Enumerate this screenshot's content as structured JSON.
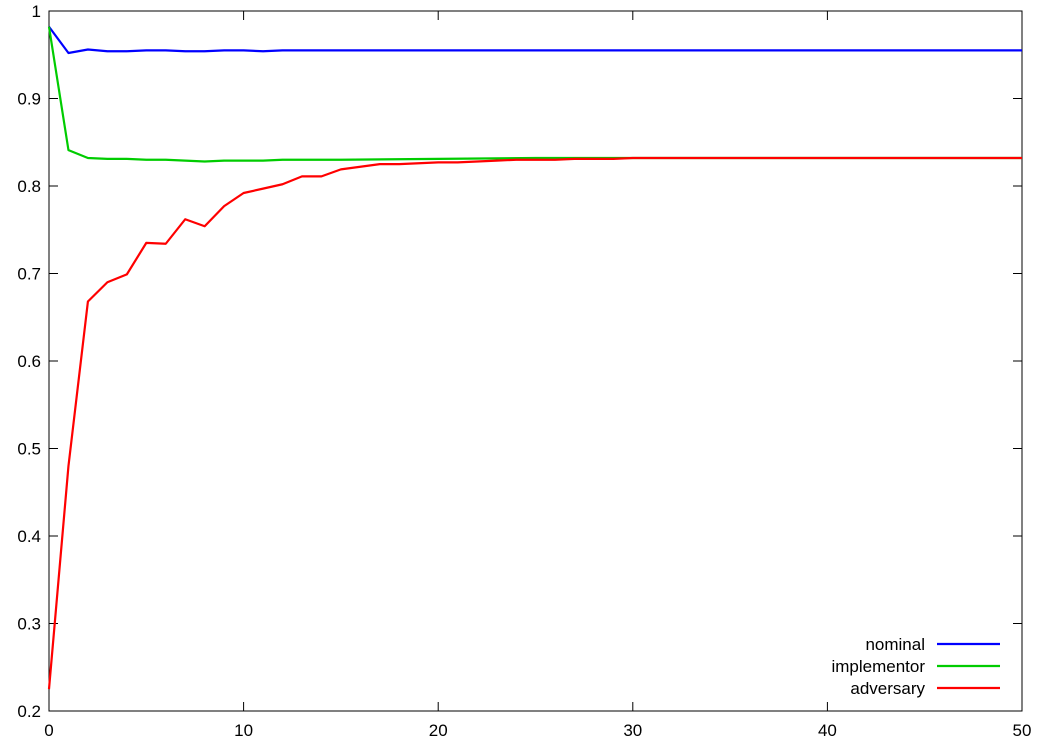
{
  "chart_data": {
    "type": "line",
    "xlim": [
      0,
      50
    ],
    "ylim": [
      0.2,
      1
    ],
    "xticks": [
      0,
      10,
      20,
      30,
      40,
      50
    ],
    "yticks": [
      0.2,
      0.3,
      0.4,
      0.5,
      0.6,
      0.7,
      0.8,
      0.9,
      1
    ],
    "xtick_labels": [
      "0",
      "10",
      "20",
      "30",
      "40",
      "50"
    ],
    "ytick_labels": [
      "0.2",
      "0.3",
      "0.4",
      "0.5",
      "0.6",
      "0.7",
      "0.8",
      "0.9",
      "1"
    ],
    "grid": false,
    "legend_position": "bottom-right",
    "series": [
      {
        "name": "nominal",
        "color": "#0000ff",
        "x": [
          0,
          1,
          2,
          3,
          4,
          5,
          6,
          7,
          8,
          9,
          10,
          11,
          12,
          13,
          14,
          15,
          16,
          17,
          18,
          19,
          20,
          25,
          30,
          35,
          40,
          45,
          50
        ],
        "y": [
          0.982,
          0.952,
          0.956,
          0.954,
          0.954,
          0.955,
          0.955,
          0.954,
          0.954,
          0.955,
          0.955,
          0.954,
          0.955,
          0.955,
          0.955,
          0.955,
          0.955,
          0.955,
          0.955,
          0.955,
          0.955,
          0.955,
          0.955,
          0.955,
          0.955,
          0.955,
          0.955
        ]
      },
      {
        "name": "implementor",
        "color": "#00cc00",
        "x": [
          0,
          1,
          2,
          3,
          4,
          5,
          6,
          7,
          8,
          9,
          10,
          11,
          12,
          13,
          14,
          15,
          20,
          25,
          30,
          35,
          40,
          45,
          50
        ],
        "y": [
          0.982,
          0.841,
          0.832,
          0.831,
          0.831,
          0.83,
          0.83,
          0.829,
          0.828,
          0.829,
          0.829,
          0.829,
          0.83,
          0.83,
          0.83,
          0.83,
          0.831,
          0.832,
          0.832,
          0.832,
          0.832,
          0.832,
          0.832
        ]
      },
      {
        "name": "adversary",
        "color": "#ff0000",
        "x": [
          0,
          1,
          2,
          3,
          4,
          5,
          6,
          7,
          8,
          9,
          10,
          11,
          12,
          13,
          14,
          15,
          16,
          17,
          18,
          19,
          20,
          21,
          22,
          23,
          24,
          25,
          26,
          27,
          28,
          29,
          30,
          35,
          40,
          45,
          50
        ],
        "y": [
          0.225,
          0.48,
          0.668,
          0.69,
          0.699,
          0.735,
          0.734,
          0.762,
          0.754,
          0.777,
          0.792,
          0.797,
          0.802,
          0.811,
          0.811,
          0.819,
          0.822,
          0.825,
          0.825,
          0.826,
          0.827,
          0.827,
          0.828,
          0.829,
          0.83,
          0.83,
          0.83,
          0.831,
          0.831,
          0.831,
          0.832,
          0.832,
          0.832,
          0.832,
          0.832
        ]
      }
    ]
  }
}
